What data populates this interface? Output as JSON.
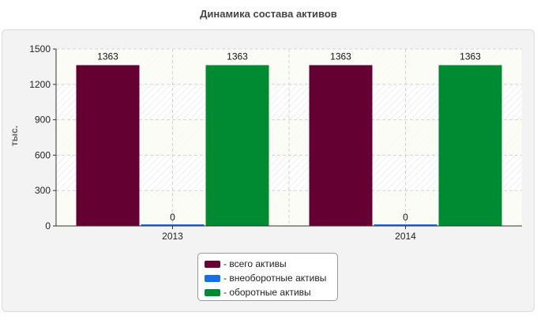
{
  "chart_data": {
    "type": "bar",
    "title": "Динамика состава активов",
    "ylabel": "тыс.",
    "xlabel": "",
    "categories": [
      "2013",
      "2014"
    ],
    "ylim": [
      0,
      1500
    ],
    "yticks": [
      0,
      300,
      600,
      900,
      1200,
      1500
    ],
    "grid": true,
    "legend_position": "bottom-center",
    "series": [
      {
        "name": "- всего активы",
        "color": "#650033",
        "values": [
          1363,
          1363
        ],
        "labels": [
          "1363",
          "1363"
        ]
      },
      {
        "name": "- внеоборотные активы",
        "color": "#1a6fe0",
        "values": [
          0,
          0
        ],
        "labels": [
          "0",
          "0"
        ]
      },
      {
        "name": "- оборотные активы",
        "color": "#008a32",
        "values": [
          1363,
          1363
        ],
        "labels": [
          "1363",
          "1363"
        ]
      }
    ]
  }
}
